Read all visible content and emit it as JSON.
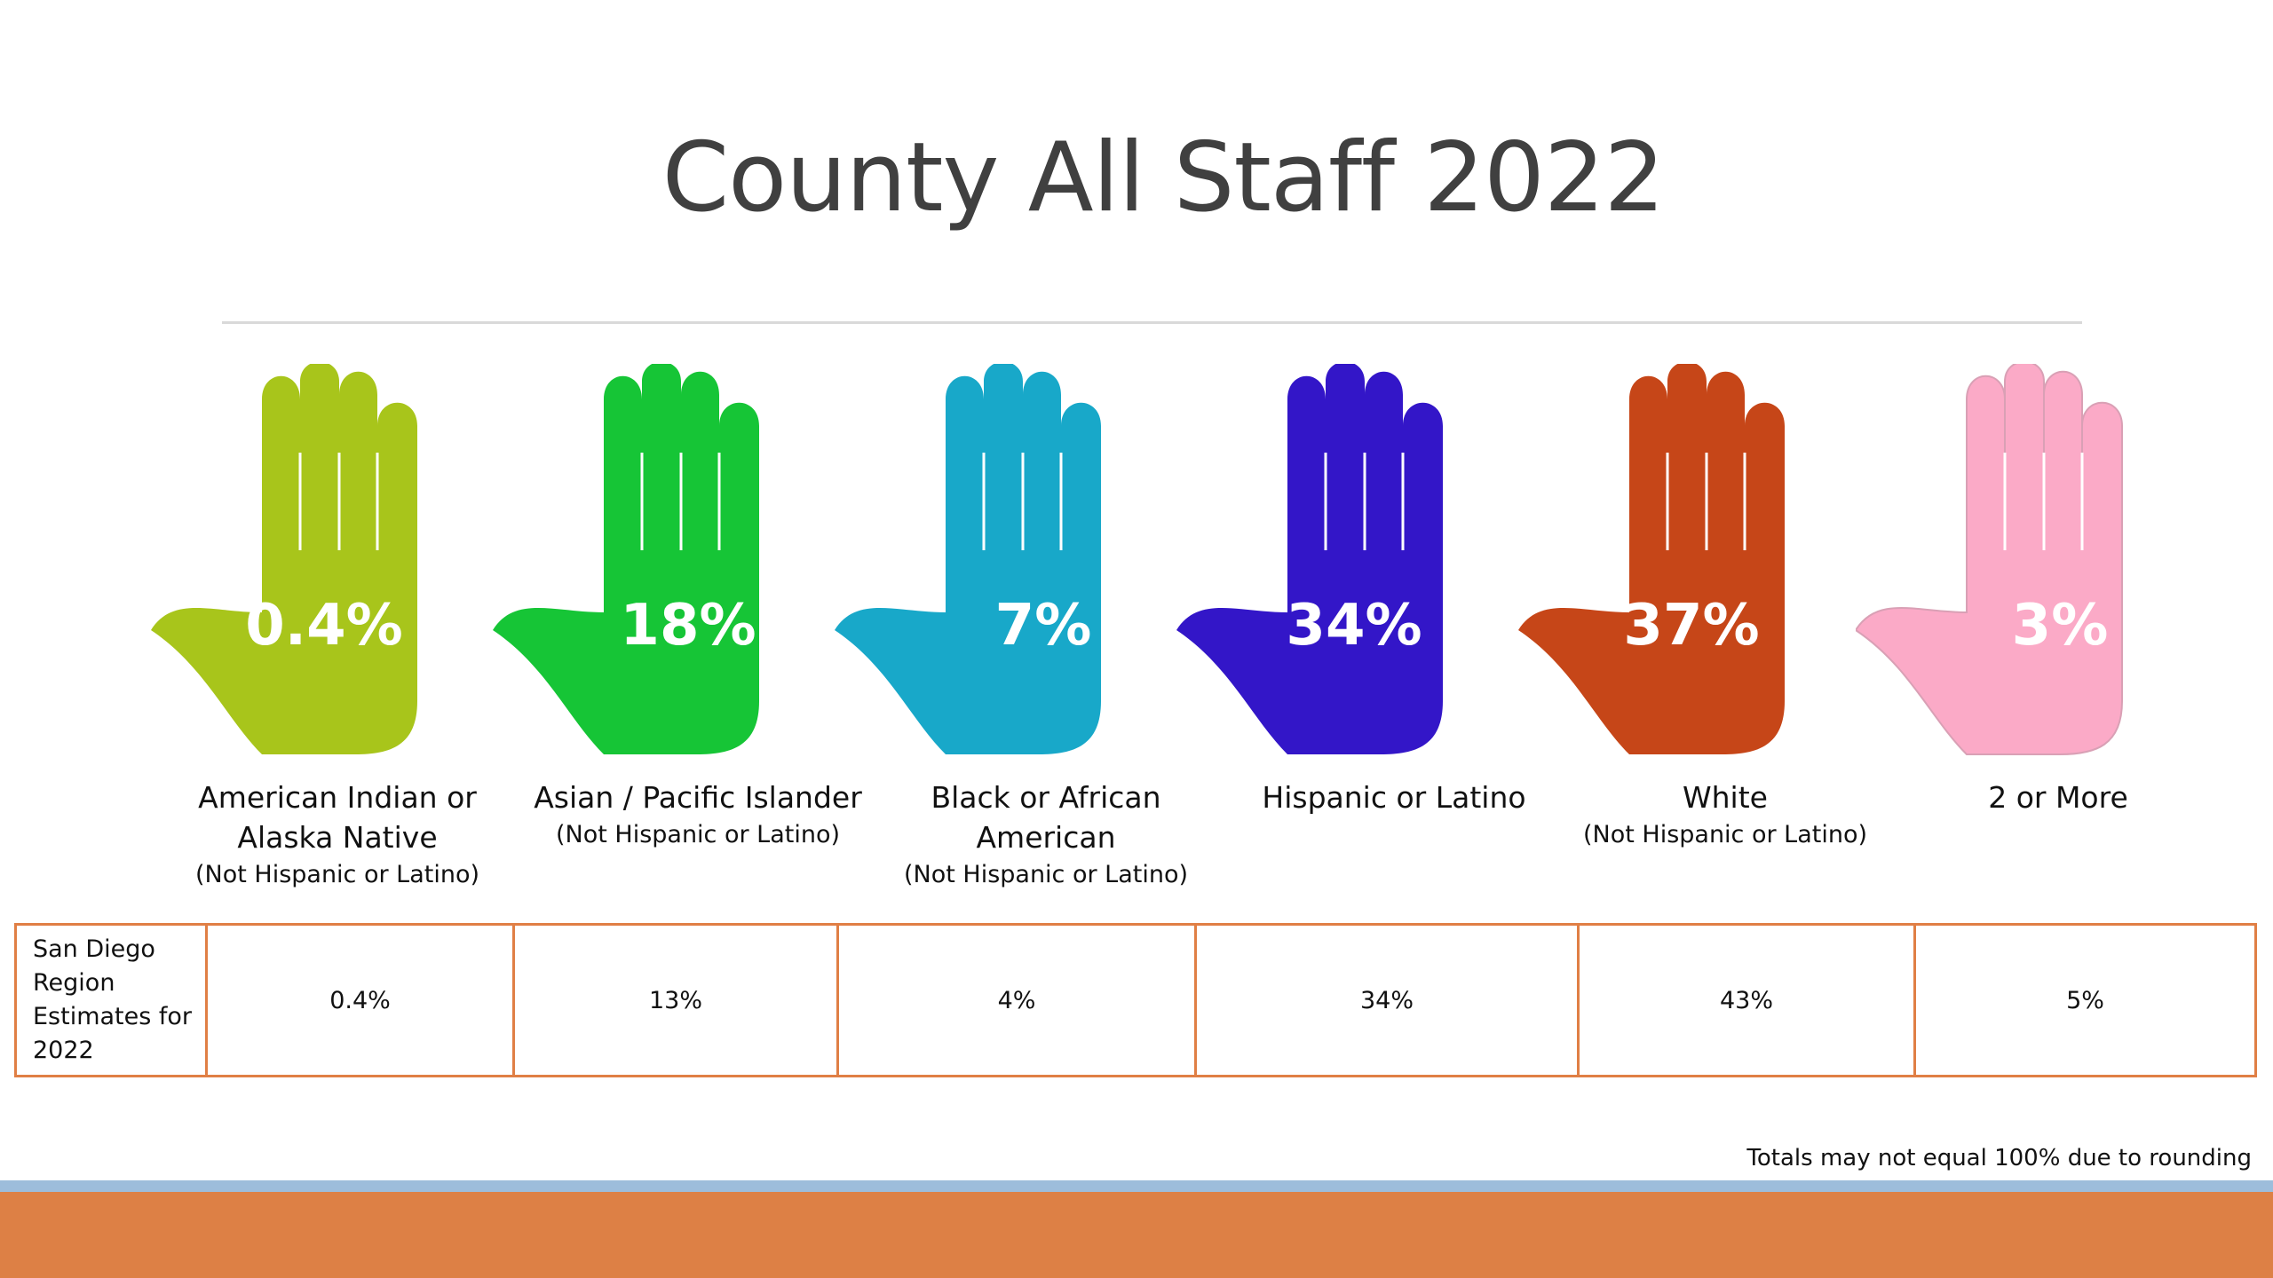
{
  "title": "County All Staff 2022",
  "chart_data": {
    "type": "table",
    "title": "County All Staff 2022",
    "categories": [
      "American Indian or Alaska Native (Not Hispanic or Latino)",
      "Asian / Pacific Islander (Not Hispanic or Latino)",
      "Black or African American (Not Hispanic or Latino)",
      "Hispanic or Latino",
      "White (Not Hispanic or Latino)",
      "2 or More"
    ],
    "series": [
      {
        "name": "County All Staff 2022",
        "values": [
          0.4,
          18,
          7,
          34,
          37,
          3
        ]
      },
      {
        "name": "San Diego Region Estimates for 2022",
        "values": [
          0.4,
          13,
          4,
          34,
          43,
          5
        ]
      }
    ]
  },
  "hands": [
    {
      "value": "0.4%",
      "name": "American Indian or Alaska Native",
      "note": "(Not Hispanic or Latino)",
      "color": "#a8c51b"
    },
    {
      "value": "18%",
      "name": "Asian / Pacific Islander",
      "note": "(Not Hispanic or Latino)",
      "color": "#16c536"
    },
    {
      "value": "7%",
      "name": "Black or African American",
      "note": "(Not Hispanic or Latino)",
      "color": "#18a8c9"
    },
    {
      "value": "34%",
      "name": "Hispanic or Latino",
      "note": "",
      "color": "#3316c8"
    },
    {
      "value": "37%",
      "name": "White",
      "note": "(Not Hispanic or Latino)",
      "color": "#c64618"
    },
    {
      "value": "3%",
      "name": "2 or More",
      "note": "",
      "color": "#fbaac7"
    }
  ],
  "region_table": {
    "row_label": "San Diego Region Estimates for 2022",
    "values": [
      "0.4%",
      "13%",
      "4%",
      "34%",
      "43%",
      "5%"
    ]
  },
  "footnote": "Totals may not equal 100% due to rounding",
  "colors": {
    "table_border": "#e07f45",
    "band_blue": "#9dbddb",
    "band_orange": "#dd8045",
    "rule": "#d9d9d9"
  }
}
